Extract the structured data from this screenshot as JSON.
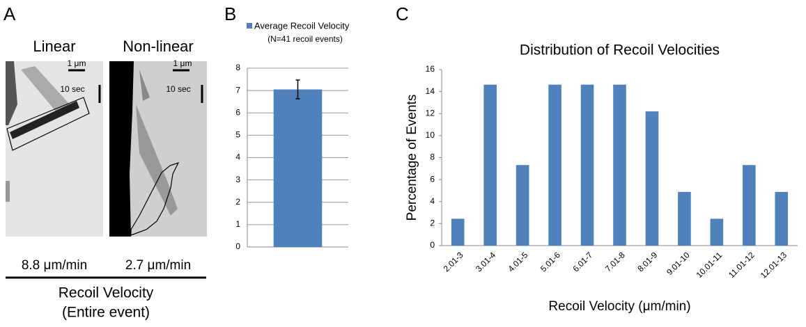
{
  "panel_labels": [
    "A",
    "B",
    "C"
  ],
  "panel_a": {
    "images": [
      {
        "title": "Linear",
        "scale_length": "1 μm",
        "scale_time": "10 sec",
        "velocity": "8.8 μm/min"
      },
      {
        "title": "Non-linear",
        "scale_length": "1 μm",
        "scale_time": "10 sec",
        "velocity": "2.7 μm/min"
      }
    ],
    "caption": [
      "Recoil Velocity",
      "(Entire event)"
    ]
  },
  "chart_data": [
    {
      "type": "bar",
      "subtitle": "(N=41 recoil events)",
      "categories": [
        null
      ],
      "series": [
        {
          "name": "Average Recoil Velocity",
          "color": "#4f81bd",
          "values": [
            7.05
          ],
          "errors": [
            0.42
          ]
        }
      ],
      "ylim": [
        0,
        8
      ],
      "yticks": [
        0,
        1,
        2,
        3,
        4,
        5,
        6,
        7,
        8
      ],
      "grid": true,
      "legend": "top"
    },
    {
      "type": "bar",
      "title": "Distribution of Recoil Velocities",
      "x_label": "Recoil Velocity (μm/min)",
      "y_label": "Percentage of Events",
      "categories": [
        "2.01-3",
        "3.01-4",
        "4.01-5",
        "5.01-6",
        "6.01-7",
        "7.01-8",
        "8.01-9",
        "9.01-10",
        "10.01-11",
        "11.01-12",
        "12.01-13"
      ],
      "values": [
        2.44,
        14.63,
        7.32,
        14.63,
        14.63,
        14.63,
        12.2,
        4.88,
        2.44,
        7.32,
        4.88
      ],
      "color": "#4f81bd",
      "ylim": [
        0,
        16
      ],
      "yticks": [
        0,
        2,
        4,
        6,
        8,
        10,
        12,
        14,
        16
      ],
      "grid": false
    }
  ]
}
